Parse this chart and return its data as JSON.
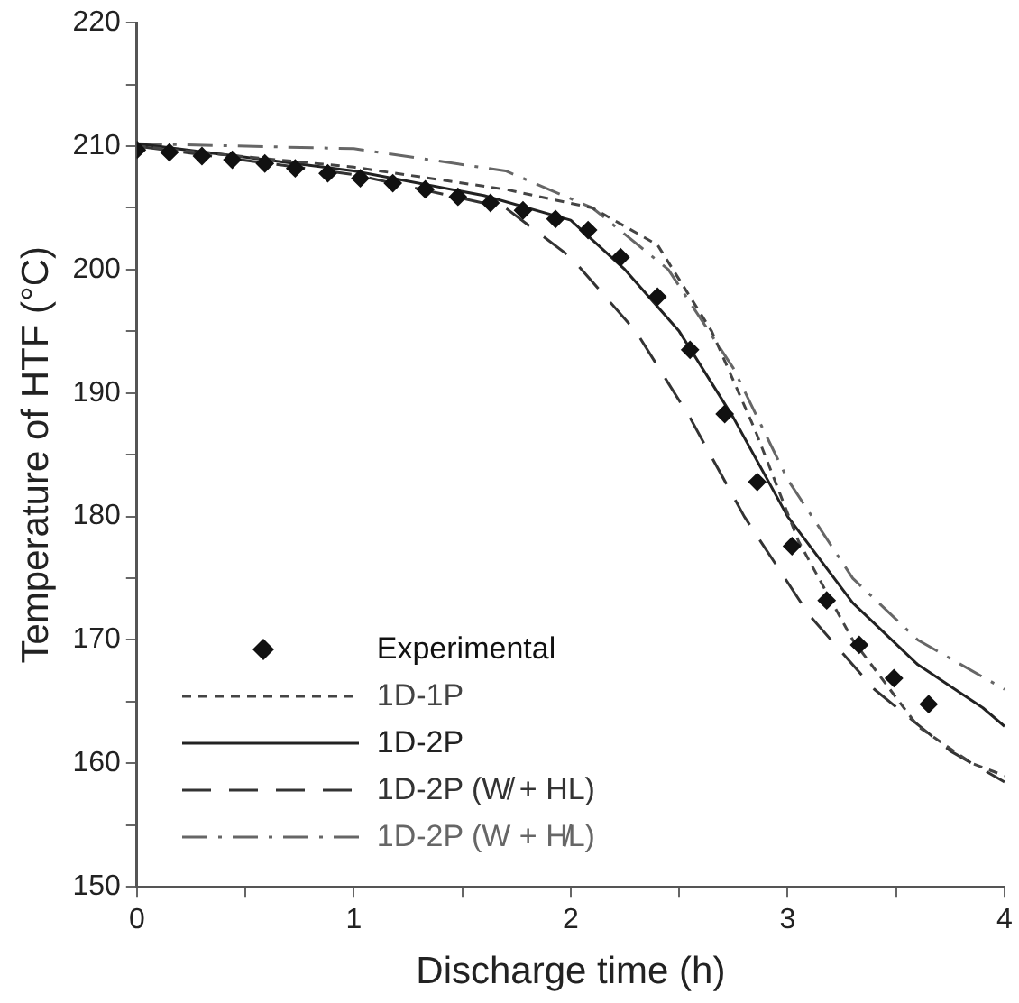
{
  "chart_data": {
    "type": "line",
    "xlabel": "Discharge time (h)",
    "ylabel": "Temperature of HTF (°C)",
    "xlim": [
      0,
      4
    ],
    "xticks": [
      0,
      {
        "value": 0.5,
        "label": null
      },
      1,
      {
        "value": 1.5,
        "label": null
      },
      2,
      {
        "value": 2.5,
        "label": null
      },
      3,
      {
        "value": 3.5,
        "label": null
      },
      4
    ],
    "ylim": [
      150,
      220
    ],
    "yticks": [
      150,
      {
        "value": 155,
        "label": null
      },
      160,
      {
        "value": 165,
        "label": null
      },
      170,
      {
        "value": 175,
        "label": null
      },
      180,
      {
        "value": 185,
        "label": null
      },
      190,
      {
        "value": 195,
        "label": null
      },
      200,
      {
        "value": 205,
        "label": null
      },
      210,
      {
        "value": 215,
        "label": null
      },
      220
    ],
    "grid": false,
    "legend": "bottom left",
    "series": [
      {
        "name": "Experimental",
        "type": "scatter",
        "marker": "diamond",
        "color": "#111111",
        "x": [
          0,
          0.15,
          0.3,
          0.44,
          0.59,
          0.73,
          0.88,
          1.03,
          1.18,
          1.33,
          1.48,
          1.63,
          1.78,
          1.93,
          2.08,
          2.23,
          2.4,
          2.55,
          2.71,
          2.86,
          3.02,
          3.18,
          3.33,
          3.49,
          3.65
        ],
        "values": [
          209.7,
          209.5,
          209.2,
          208.9,
          208.6,
          208.2,
          207.8,
          207.4,
          207.0,
          206.5,
          205.9,
          205.4,
          204.8,
          204.1,
          203.2,
          201.0,
          197.8,
          193.5,
          188.3,
          182.8,
          177.6,
          173.2,
          169.6,
          166.9,
          164.8
        ]
      },
      {
        "name": "1D-1P",
        "type": "line",
        "line_style": "dashed",
        "marker": "none",
        "color": "#444444",
        "x": [
          0,
          1,
          1.7,
          2.1,
          2.4,
          2.65,
          2.85,
          3.05,
          3.3,
          3.6,
          3.85,
          4
        ],
        "values": [
          210,
          208.3,
          206.5,
          205,
          202,
          195,
          187,
          178,
          170,
          163,
          160,
          159
        ]
      },
      {
        "name": "1D-2P",
        "type": "line",
        "line_style": "solid",
        "marker": "none",
        "color": "#222222",
        "x": [
          0,
          1,
          1.6,
          2,
          2.25,
          2.5,
          2.75,
          3,
          3.3,
          3.6,
          3.9,
          4
        ],
        "values": [
          210.2,
          208,
          206,
          204,
          200,
          195,
          188,
          180,
          173,
          168,
          164.5,
          163
        ]
      },
      {
        "name": "1D-2P (W̸ + HL)",
        "type": "line",
        "line_style": "longdash",
        "marker": "none",
        "color": "#333333",
        "x": [
          0,
          1,
          1.7,
          2,
          2.3,
          2.55,
          2.8,
          3.1,
          3.4,
          3.75,
          4
        ],
        "values": [
          210,
          207.7,
          205,
          201,
          195,
          188,
          180,
          172,
          166,
          161,
          158.5
        ]
      },
      {
        "name": "1D-2P (W + H̸L)",
        "type": "line",
        "line_style": "dashdot",
        "marker": "none",
        "color": "#666666",
        "x": [
          0,
          1,
          1.7,
          2.1,
          2.45,
          2.75,
          3,
          3.3,
          3.6,
          4
        ],
        "values": [
          210.2,
          209.8,
          208,
          205,
          200,
          192,
          183,
          175,
          170,
          166
        ]
      }
    ]
  }
}
